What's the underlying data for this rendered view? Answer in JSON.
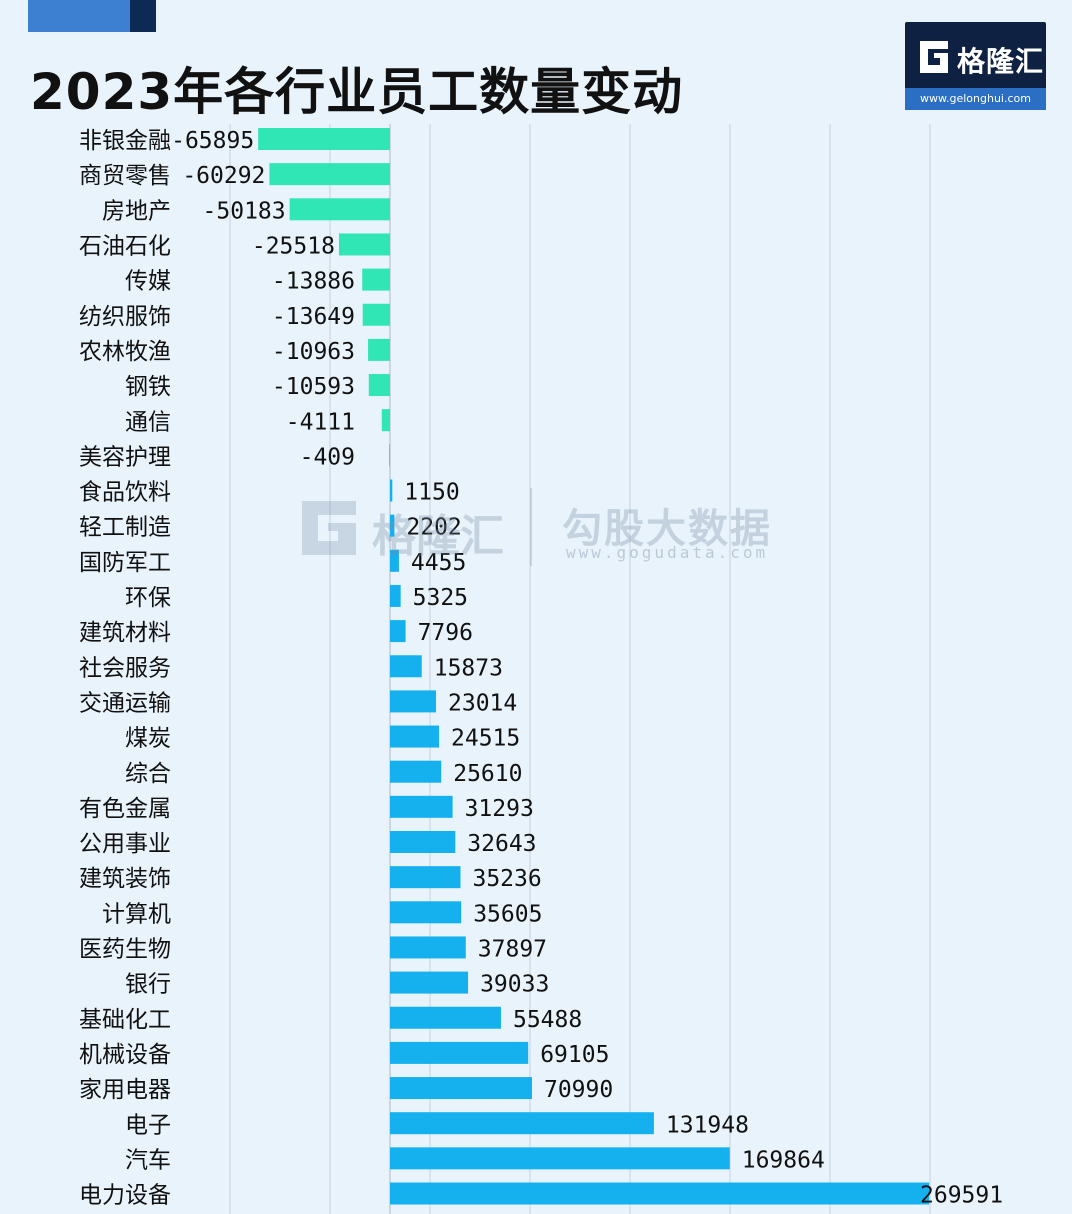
{
  "title": "2023年各行业员工数量变动",
  "logo": {
    "name": "格隆汇",
    "url": "www.gelonghui.com"
  },
  "watermark": {
    "name": "格隆汇",
    "name2": "勾股大数据",
    "url2": "www.gogudata.com"
  },
  "colors": {
    "negative": "#2fe6b4",
    "positive": "#15b1ef",
    "grid": "#c8d2dc"
  },
  "chart_data": {
    "type": "bar",
    "orientation": "horizontal",
    "title": "2023年各行业员工数量变动",
    "xlim": [
      -80000,
      280000
    ],
    "grid": true,
    "categories": [
      "非银金融",
      "商贸零售",
      "房地产",
      "石油石化",
      "传媒",
      "纺织服饰",
      "农林牧渔",
      "钢铁",
      "通信",
      "美容护理",
      "食品饮料",
      "轻工制造",
      "国防军工",
      "环保",
      "建筑材料",
      "社会服务",
      "交通运输",
      "煤炭",
      "综合",
      "有色金属",
      "公用事业",
      "建筑装饰",
      "计算机",
      "医药生物",
      "银行",
      "基础化工",
      "机械设备",
      "家用电器",
      "电子",
      "汽车",
      "电力设备"
    ],
    "values": [
      -65895,
      -60292,
      -50183,
      -25518,
      -13886,
      -13649,
      -10963,
      -10593,
      -4111,
      -409,
      1150,
      2202,
      4455,
      5325,
      7796,
      15873,
      23014,
      24515,
      25610,
      31293,
      32643,
      35236,
      35605,
      37897,
      39033,
      55488,
      69105,
      70990,
      131948,
      169864,
      269591
    ]
  }
}
